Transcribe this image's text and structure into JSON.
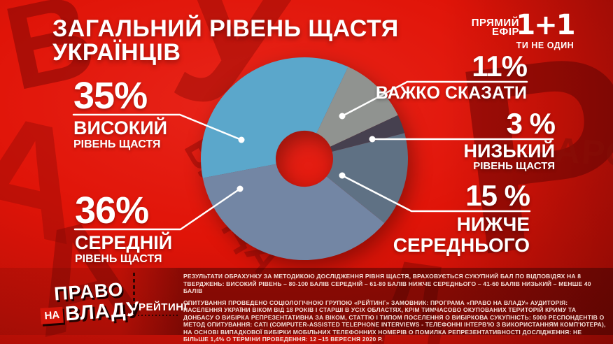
{
  "header": {
    "title": "ЗАГАЛЬНИЙ РІВЕНЬ ЩАСТЯ УКРАЇНЦІВ"
  },
  "branding": {
    "live_line1": "ПРЯМИЙ",
    "live_line2": "ЕФІР",
    "channel_logo": "1+1",
    "channel_tagline": "ТИ НЕ ОДИН"
  },
  "chart_data": {
    "type": "pie",
    "donut": true,
    "title": "ЗАГАЛЬНИЙ РІВЕНЬ ЩАСТЯ УКРАЇНЦІВ",
    "unit": "%",
    "start_angle_deg_cw_from_top": 25,
    "clockwise": true,
    "order_clockwise": [
      "hard_to_say",
      "low",
      "below_average",
      "medium",
      "high"
    ],
    "segments": [
      {
        "id": "high",
        "value": 35,
        "label_value": "35%",
        "label": "ВИСОКИЙ",
        "sublabel": "РІВЕНЬ ЩАСТЯ",
        "color": "#5BA7CB"
      },
      {
        "id": "medium",
        "value": 36,
        "label_value": "36%",
        "label": "СЕРЕДНІЙ",
        "sublabel": "РІВЕНЬ ЩАСТЯ",
        "color": "#7386A4"
      },
      {
        "id": "below_average",
        "value": 15,
        "label_value": "15 %",
        "label": "НИЖЧЕ",
        "sublabel": "СЕРЕДНЬОГО",
        "color": "#5F7184"
      },
      {
        "id": "low",
        "value": 3,
        "label_value": "3 %",
        "label": "НИЗЬКИЙ",
        "sublabel": "РІВЕНЬ ЩАСТЯ",
        "color": "#46404F"
      },
      {
        "id": "hard_to_say",
        "value": 11,
        "label_value": "11%",
        "label": "ВАЖКО СКАЗАТИ",
        "sublabel": "",
        "color": "#909390"
      }
    ]
  },
  "footer": {
    "logo": {
      "top": "ПРАВО",
      "na": "НА",
      "bottom": "ВЛАДУ"
    },
    "source_label": "РЕЙТИНГ",
    "methodology_1": "РЕЗУЛЬТАТИ ОБРАХУНКУ ЗА МЕТОДИКОЮ ДОСЛІДЖЕННЯ РІВНЯ ЩАСТЯ, ВРАХОВУЄТЬСЯ СУКУПНИЙ БАЛ ПО ВІДПОВІДЯХ НА 8 ТВЕРДЖЕНЬ: ВИСОКИЙ РІВЕНЬ – 80-100 БАЛІВ  СЕРЕДНІЙ – 61-80 БАЛІВ НИЖЧЕ СЕРЕДНЬОГО – 41-60 БАЛІВ НИЗЬКИЙ – МЕНШЕ 40 БАЛІВ",
    "methodology_2": "ОПИТУВАННЯ ПРОВЕДЕНО СОЦІОЛОГІЧНОЮ ГРУПОЮ «РЕЙТИНГ»  ЗАМОВНИК: ПРОГРАМА «ПРАВО НА ВЛАДУ»  АУДИТОРІЯ: НАСЕЛЕННЯ УКРАЇНИ ВІКОМ ВІД 18 РОКІВ І СТАРШІ В УСІХ ОБЛАСТЯХ, КРІМ ТИМЧАСОВО ОКУПОВАНИХ ТЕРИТОРІЙ КРИМУ ТА ДОНБАСУ О ВИБІРКА РЕПРЕЗЕНТАТИВНА ЗА ВІКОМ, СТАТТЮ І ТИПОМ ПОСЕЛЕННЯ  О ВИБІРКОВА СУКУПНІСТЬ: 5000 РЕСПОНДЕНТІВ  О МЕТОД ОПИТУВАННЯ: CATI (COMPUTER-ASSISTED TELEPHONE INTERVIEWS - ТЕЛЕФОННІ ІНТЕРВ'Ю З ВИКОРИСТАННЯМ КОМП'ЮТЕРА), НА ОСНОВІ ВИПАДКОВОЇ ВИБІРКИ МОБІЛЬНИХ ТЕЛЕФОННИХ НОМЕРІВ О ПОМИЛКА РЕПРЕЗЕНТАТИВНОСТІ ДОСЛІДЖЕННЯ: НЕ БІЛЬШЕ 1,4%  О ТЕРМІНИ ПРОВЕДЕННЯ: 12 –15 ВЕРЕСНЯ 2020 Р."
  },
  "background": {
    "glyphs": [
      "У",
      "Р",
      "А",
      "ВЛАДА",
      "А",
      "В",
      "АРС",
      "Д"
    ]
  }
}
